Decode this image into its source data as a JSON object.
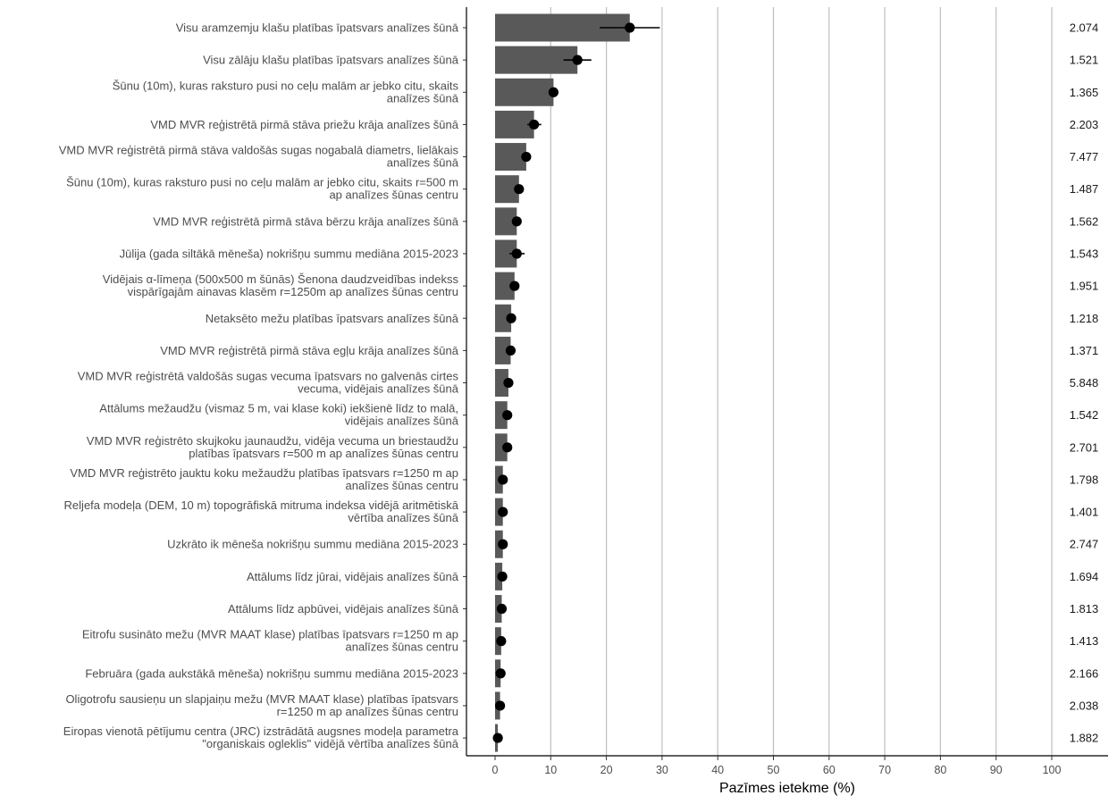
{
  "chart_data": {
    "type": "bar",
    "xlabel": "Pazīmes ietekme (%)",
    "xlim": [
      0,
      100
    ],
    "x_ticks": [
      0,
      10,
      20,
      30,
      40,
      50,
      60,
      70,
      80,
      90,
      100
    ],
    "grid": "vertical major gridlines",
    "colors": {
      "bar": "#595959",
      "point": "#000000",
      "grid": "#bebebe",
      "axis": "#000000"
    },
    "categories": [
      [
        "Visu aramzemju klašu platības īpatsvars analīzes šūnā"
      ],
      [
        "Visu zālāju klašu platības īpatsvars analīzes šūnā"
      ],
      [
        "Šūnu (10m), kuras raksturo pusi no ceļu malām ar jebko citu, skaits",
        "analīzes šūnā"
      ],
      [
        "VMD MVR reģistrētā pirmā stāva priežu krāja analīzes šūnā"
      ],
      [
        "VMD MVR reģistrētā pirmā stāva valdošās sugas nogabalā diametrs, lielākais",
        "analīzes šūnā"
      ],
      [
        "Šūnu (10m), kuras raksturo pusi no ceļu malām ar jebko citu, skaits r=500 m",
        "ap analīzes šūnas centru"
      ],
      [
        "VMD MVR reģistrētā pirmā stāva bērzu krāja analīzes šūnā"
      ],
      [
        "Jūlija (gada siltākā mēneša) nokrišņu summu mediāna 2015-2023"
      ],
      [
        "Vidējais α-līmeņa (500x500 m šūnās) Šenona daudzveidības indekss",
        "vispārīgajām ainavas klasēm r=1250m ap analīzes šūnas centru"
      ],
      [
        "Netaksēto mežu platības īpatsvars analīzes šūnā"
      ],
      [
        "VMD MVR reģistrētā pirmā stāva egļu krāja analīzes šūnā"
      ],
      [
        "VMD MVR reģistrētā valdošās sugas vecuma īpatsvars no galvenās cirtes",
        "vecuma, vidējais analīzes šūnā"
      ],
      [
        "Attālums mežaudžu (vismaz 5 m, vai klase koki) iekšienē līdz to malā,",
        "vidējais analīzes šūnā"
      ],
      [
        "VMD MVR reģistrēto skujkoku jaunaudžu, vidēja vecuma un briestaudžu",
        "platības īpatsvars r=500 m ap analīzes šūnas centru"
      ],
      [
        "VMD MVR reģistrēto jauktu koku mežaudžu platības īpatsvars r=1250 m ap",
        "analīzes šūnas centru"
      ],
      [
        "Reljefa modeļa (DEM, 10 m) topogrāfiskā mitruma indeksa vidējā aritmētiskā",
        "vērtība analīzes šūnā"
      ],
      [
        "Uzkrāto ik mēneša nokrišņu summu mediāna 2015-2023"
      ],
      [
        "Attālums līdz jūrai, vidējais analīzes šūnā"
      ],
      [
        "Attālums līdz apbūvei, vidējais analīzes šūnā"
      ],
      [
        "Eitrofu susināto mežu (MVR MAAT klase) platības īpatsvars r=1250 m ap",
        "analīzes šūnas centru"
      ],
      [
        "Februāra (gada aukstākā mēneša) nokrišņu summu mediāna 2015-2023"
      ],
      [
        "Oligotrofu sausieņu un slapjaiņu mežu (MVR MAAT klase) platības īpatsvars",
        "r=1250 m ap analīzes šūnas centru"
      ],
      [
        "Eiropas vienotā pētījumu centra (JRC) izstrādātā augsnes modeļa parametra",
        "\"organiskais ogleklis\" vidējā vērtība analīzes šūnā"
      ]
    ],
    "values": [
      24.2,
      14.8,
      10.5,
      7.0,
      5.6,
      4.3,
      3.9,
      3.9,
      3.5,
      2.9,
      2.8,
      2.4,
      2.2,
      2.2,
      1.4,
      1.4,
      1.4,
      1.3,
      1.2,
      1.1,
      1.0,
      0.9,
      0.5
    ],
    "points": [
      24.2,
      14.8,
      10.5,
      7.0,
      5.6,
      4.3,
      3.9,
      3.9,
      3.5,
      2.9,
      2.8,
      2.4,
      2.2,
      2.2,
      1.4,
      1.4,
      1.4,
      1.3,
      1.2,
      1.1,
      1.0,
      0.9,
      0.5
    ],
    "error_low": [
      18.8,
      12.3,
      null,
      5.8,
      null,
      null,
      null,
      2.6,
      null,
      null,
      null,
      null,
      null,
      null,
      null,
      null,
      null,
      null,
      null,
      null,
      null,
      null,
      null
    ],
    "error_high": [
      29.6,
      17.3,
      null,
      8.3,
      null,
      null,
      null,
      5.3,
      null,
      null,
      null,
      null,
      null,
      null,
      null,
      null,
      null,
      null,
      null,
      null,
      null,
      null,
      null
    ],
    "right_labels": [
      "2.074",
      "1.521",
      "1.365",
      "2.203",
      "7.477",
      "1.487",
      "1.562",
      "1.543",
      "1.951",
      "1.218",
      "1.371",
      "5.848",
      "1.542",
      "2.701",
      "1.798",
      "1.401",
      "2.747",
      "1.694",
      "1.813",
      "1.413",
      "2.166",
      "2.038",
      "1.882"
    ]
  }
}
